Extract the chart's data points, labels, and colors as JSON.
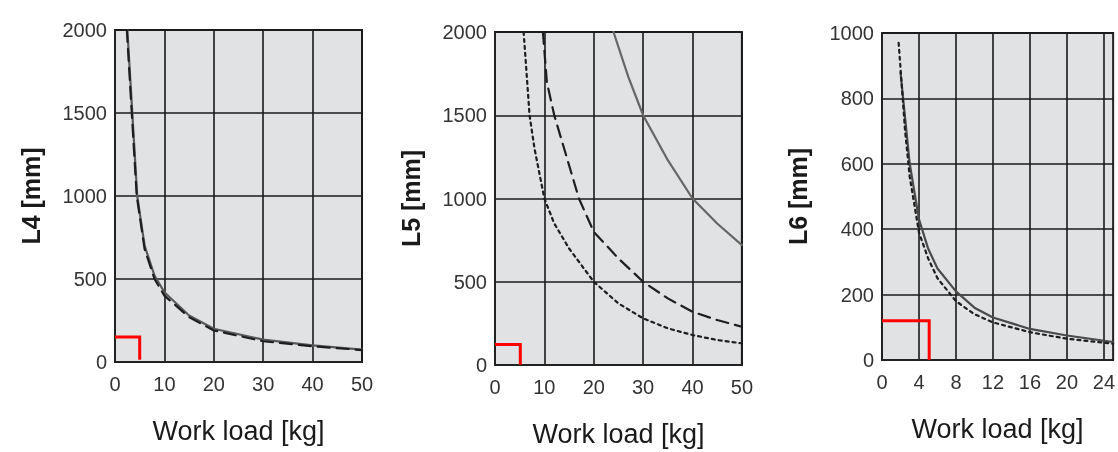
{
  "chart_data": [
    {
      "type": "line",
      "xlabel": "Work load [kg]",
      "ylabel": "L4 [mm]",
      "xlim": [
        0,
        50
      ],
      "xticks": [
        0,
        10,
        20,
        30,
        40,
        50
      ],
      "ylim": [
        0,
        2000
      ],
      "yticks": [
        0,
        500,
        1000,
        1500,
        2000
      ],
      "grid": true,
      "marker": "none",
      "series": [
        {
          "color": "#5a5a5a",
          "line_style": "solid",
          "x": [
            2.5,
            3,
            3.5,
            4.5,
            6,
            8,
            10,
            15,
            20,
            30,
            40,
            50
          ],
          "values": [
            2000,
            1750,
            1500,
            1000,
            700,
            520,
            420,
            280,
            200,
            135,
            100,
            75
          ]
        },
        {
          "color": "#1e1e1e",
          "line_style": "dashed",
          "x": [
            2.4,
            2.9,
            3.4,
            4.4,
            6,
            8,
            10,
            15,
            20,
            30,
            40,
            50
          ],
          "values": [
            2000,
            1750,
            1500,
            1000,
            680,
            500,
            400,
            270,
            190,
            125,
            95,
            72
          ]
        }
      ]
    },
    {
      "type": "line",
      "xlabel": "Work load [kg]",
      "ylabel": "L5 [mm]",
      "xlim": [
        0,
        50
      ],
      "xticks": [
        0,
        10,
        20,
        30,
        40,
        50
      ],
      "ylim": [
        0,
        2000
      ],
      "yticks": [
        0,
        500,
        1000,
        1500,
        2000
      ],
      "grid": true,
      "marker": "none",
      "series": [
        {
          "color": "#666666",
          "line_style": "solid",
          "x": [
            24,
            27,
            30,
            35,
            40,
            45,
            50
          ],
          "values": [
            2000,
            1730,
            1500,
            1230,
            1000,
            850,
            720
          ]
        },
        {
          "color": "#1e1e1e",
          "line_style": "dashed",
          "x": [
            9.7,
            10.5,
            12,
            15,
            17,
            20,
            25,
            30,
            35,
            40,
            45,
            50
          ],
          "values": [
            2000,
            1700,
            1500,
            1200,
            1000,
            800,
            640,
            500,
            400,
            320,
            270,
            230
          ]
        },
        {
          "color": "#1e1e1e",
          "line_style": "dotted",
          "x": [
            5.8,
            7,
            8,
            10,
            12,
            15,
            20,
            25,
            30,
            35,
            40,
            45,
            50
          ],
          "values": [
            2000,
            1500,
            1300,
            1000,
            850,
            700,
            500,
            370,
            280,
            220,
            180,
            150,
            130
          ]
        }
      ]
    },
    {
      "type": "line",
      "xlabel": "Work load [kg]",
      "ylabel": "L6 [mm]",
      "xlim": [
        0,
        25
      ],
      "xticks": [
        0,
        4,
        8,
        12,
        16,
        20,
        24
      ],
      "ylim": [
        0,
        1000
      ],
      "yticks": [
        0,
        200,
        400,
        600,
        800,
        1000
      ],
      "grid": true,
      "marker": "none",
      "series": [
        {
          "color": "#4a4a4a",
          "line_style": "solid",
          "x": [
            2,
            3,
            4,
            5,
            6,
            8,
            10,
            12,
            16,
            20,
            25
          ],
          "values": [
            880,
            600,
            430,
            340,
            280,
            210,
            160,
            130,
            95,
            75,
            55
          ]
        },
        {
          "color": "#1e1e1e",
          "line_style": "dotted",
          "x": [
            1.8,
            2.5,
            3,
            4,
            5,
            6,
            8,
            10,
            12,
            16,
            20,
            25
          ],
          "values": [
            970,
            700,
            560,
            390,
            310,
            250,
            180,
            140,
            115,
            85,
            65,
            50
          ]
        }
      ]
    }
  ]
}
